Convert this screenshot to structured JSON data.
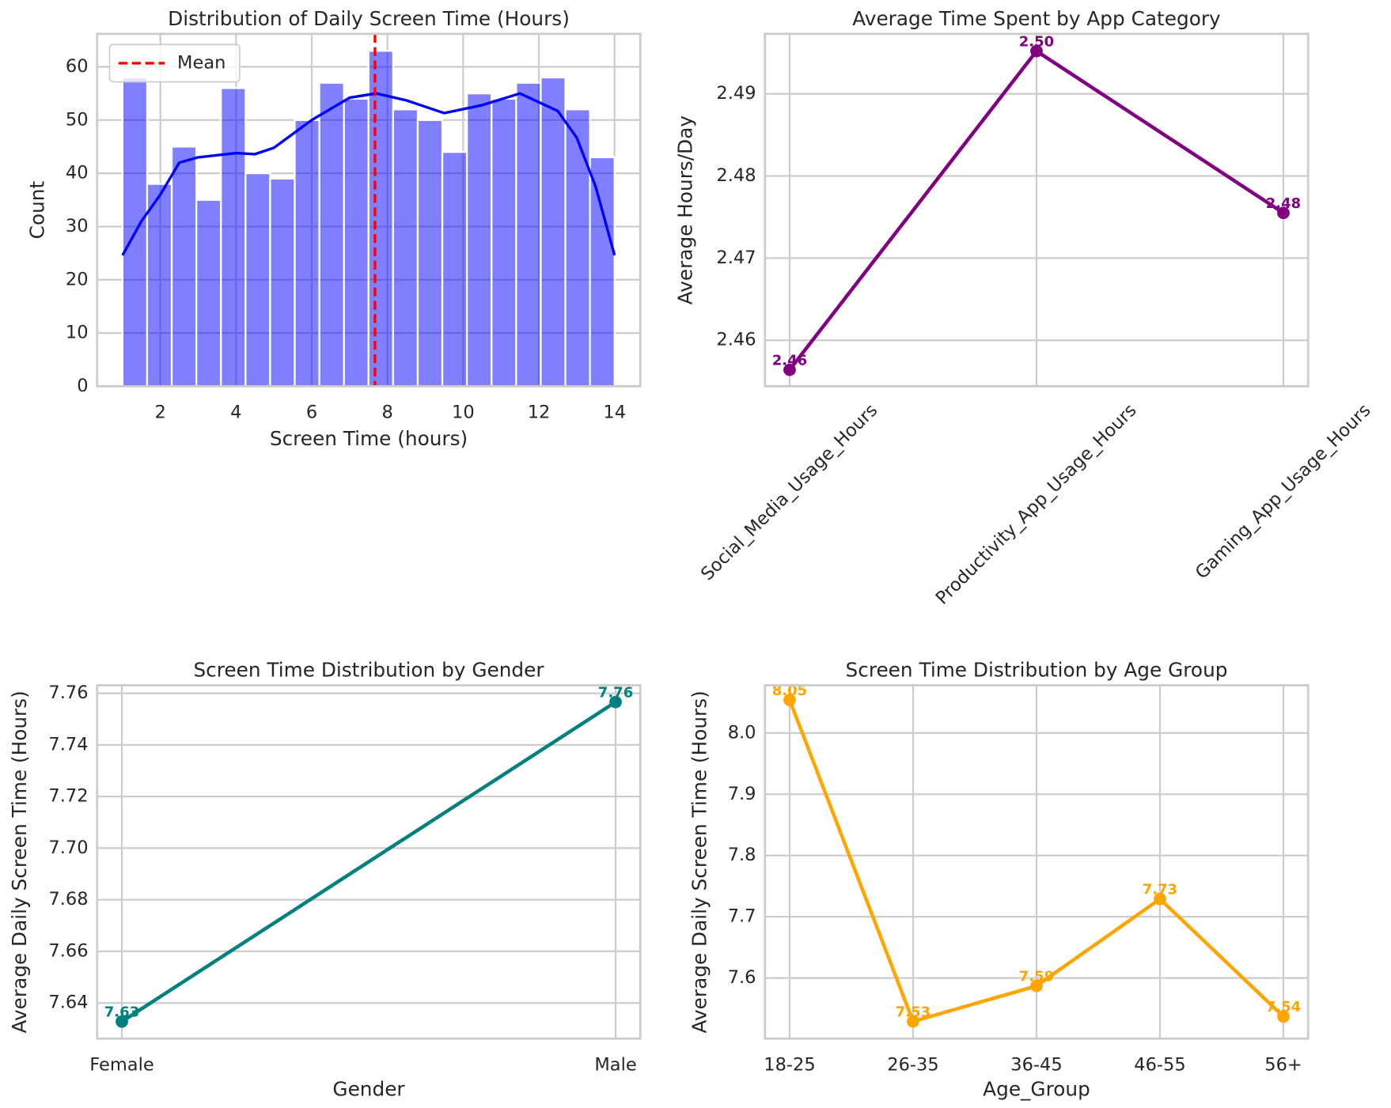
{
  "chart_data": [
    {
      "type": "histogram",
      "title": "Distribution of Daily Screen Time (Hours)",
      "xlabel": "Screen Time (hours)",
      "ylabel": "Count",
      "bins": [
        1,
        1.65,
        2.3,
        2.95,
        3.6,
        4.25,
        4.9,
        5.55,
        6.2,
        6.85,
        7.5,
        8.15,
        8.8,
        9.45,
        10.1,
        10.75,
        11.4,
        12.05,
        12.7,
        13.35,
        14
      ],
      "counts": [
        58,
        38,
        45,
        35,
        56,
        40,
        39,
        50,
        57,
        54,
        63,
        52,
        50,
        44,
        55,
        54,
        57,
        58,
        52,
        43
      ],
      "color": "#0000ff",
      "kde": {
        "x": [
          1,
          1.5,
          2,
          2.5,
          3,
          4,
          4.5,
          5,
          6,
          7,
          7.7,
          8.5,
          9.5,
          10.5,
          11.5,
          12.5,
          13,
          13.5,
          14
        ],
        "values": [
          24.6,
          31,
          36,
          42,
          43,
          43.8,
          43.6,
          44.8,
          50,
          54.2,
          55,
          53.7,
          51.3,
          52.8,
          55,
          51.7,
          46.7,
          37.5,
          24.6
        ],
        "color": "#0000ff"
      },
      "mean": {
        "name": "Mean",
        "value": 7.67,
        "color": "#ff0000"
      },
      "xlim": [
        0.33,
        14.68
      ],
      "ylim": [
        0,
        66.2
      ],
      "xticks": [
        2,
        4,
        6,
        8,
        10,
        12,
        14
      ],
      "yticks": [
        0,
        10,
        20,
        30,
        40,
        50,
        60
      ],
      "grid": true,
      "legend": "upper left"
    },
    {
      "type": "line",
      "title": "Average Time Spent by App Category",
      "ylabel": "Average Hours/Day",
      "categories": [
        "Social_Media_Usage_Hours",
        "Productivity_App_Usage_Hours",
        "Gaming_App_Usage_Hours"
      ],
      "values": [
        2.4564,
        2.4952,
        2.4755
      ],
      "value_labels": [
        "2.46",
        "2.50",
        "2.48"
      ],
      "color": "#800080",
      "ylim": [
        2.4544,
        2.4973
      ],
      "yticks": [
        2.46,
        2.47,
        2.48,
        2.49
      ],
      "grid": true,
      "xtick_rotation": 45
    },
    {
      "type": "line",
      "title": "Screen Time Distribution by Gender",
      "xlabel": "Gender",
      "ylabel": "Average Daily Screen Time (Hours)",
      "categories": [
        "Female",
        "Male"
      ],
      "values": [
        7.6328,
        7.7566
      ],
      "value_labels": [
        "7.63",
        "7.76"
      ],
      "color": "#008080",
      "ylim": [
        7.6262,
        7.7631
      ],
      "yticks": [
        7.64,
        7.66,
        7.68,
        {
          "value": 7.7,
          "label": "7.70"
        },
        7.72,
        7.74,
        7.76
      ],
      "grid": true
    },
    {
      "type": "line",
      "title": "Screen Time Distribution by Age Group",
      "xlabel": "Age_Group",
      "ylabel": "Average Daily Screen Time (Hours)",
      "categories": [
        "18-25",
        "26-35",
        "36-45",
        "46-55",
        "56+"
      ],
      "values": [
        8.054,
        7.529,
        7.587,
        7.729,
        7.537
      ],
      "value_labels": [
        "8.05",
        "7.53",
        "7.59",
        "7.73",
        "7.54"
      ],
      "color": "#ffa500",
      "ylim": [
        7.501,
        8.078
      ],
      "yticks": [
        7.6,
        7.7,
        7.8,
        7.9,
        {
          "value": 8,
          "label": "8.0"
        }
      ],
      "grid": true
    }
  ]
}
